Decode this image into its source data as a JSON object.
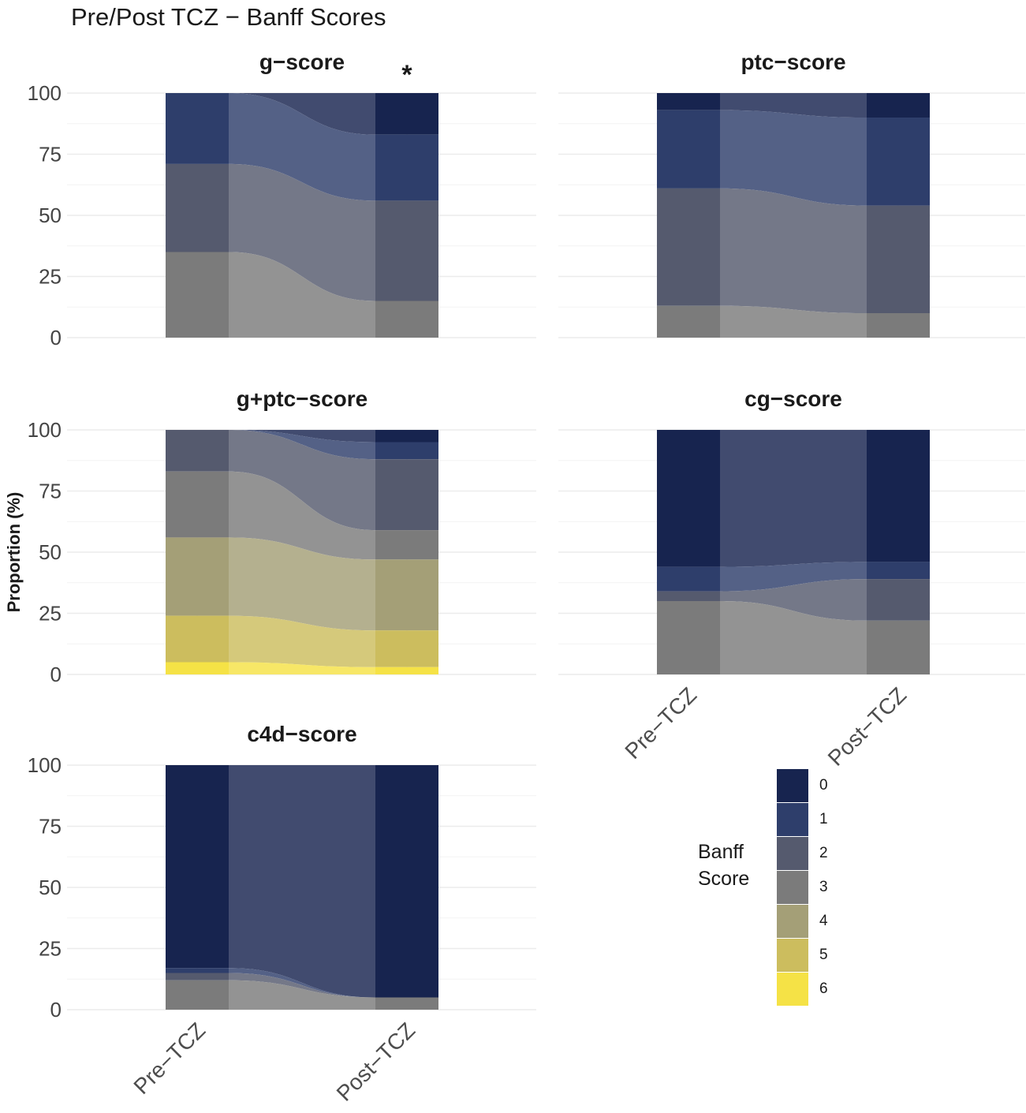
{
  "title": "Pre/Post TCZ − Banff Scores",
  "ylabel": "Proportion (%)",
  "legend": {
    "title_line1": "Banff",
    "title_line2": "Score",
    "items": [
      {
        "label": "0",
        "color": "#17244f"
      },
      {
        "label": "1",
        "color": "#2e3e6b"
      },
      {
        "label": "2",
        "color": "#555a6e"
      },
      {
        "label": "3",
        "color": "#7b7b7b"
      },
      {
        "label": "4",
        "color": "#a49f77"
      },
      {
        "label": "5",
        "color": "#ccbd5e"
      },
      {
        "label": "6",
        "color": "#f5e246"
      }
    ]
  },
  "chart_data": [
    {
      "type": "bar",
      "subtype": "stacked-alluvial",
      "title": "g−score",
      "annotation": "*",
      "categories": [
        "Pre−TCZ",
        "Post−TCZ"
      ],
      "ylim": [
        0,
        100
      ],
      "yticks": [
        "0",
        "25",
        "50",
        "75",
        "100"
      ],
      "series": [
        {
          "name": "0",
          "values": [
            0,
            17
          ]
        },
        {
          "name": "1",
          "values": [
            29,
            27
          ]
        },
        {
          "name": "2",
          "values": [
            36,
            41
          ]
        },
        {
          "name": "3",
          "values": [
            35,
            15
          ]
        }
      ]
    },
    {
      "type": "bar",
      "subtype": "stacked-alluvial",
      "title": "ptc−score",
      "categories": [
        "Pre−TCZ",
        "Post−TCZ"
      ],
      "ylim": [
        0,
        100
      ],
      "yticks": [
        "0",
        "25",
        "50",
        "75",
        "100"
      ],
      "series": [
        {
          "name": "0",
          "values": [
            7,
            10
          ]
        },
        {
          "name": "1",
          "values": [
            32,
            36
          ]
        },
        {
          "name": "2",
          "values": [
            48,
            44
          ]
        },
        {
          "name": "3",
          "values": [
            13,
            10
          ]
        }
      ]
    },
    {
      "type": "bar",
      "subtype": "stacked-alluvial",
      "title": "g+ptc−score",
      "categories": [
        "Pre−TCZ",
        "Post−TCZ"
      ],
      "ylim": [
        0,
        100
      ],
      "yticks": [
        "0",
        "25",
        "50",
        "75",
        "100"
      ],
      "series": [
        {
          "name": "0",
          "values": [
            0,
            5
          ]
        },
        {
          "name": "1",
          "values": [
            0,
            7
          ]
        },
        {
          "name": "2",
          "values": [
            17,
            29
          ]
        },
        {
          "name": "3",
          "values": [
            27,
            12
          ]
        },
        {
          "name": "4",
          "values": [
            32,
            29
          ]
        },
        {
          "name": "5",
          "values": [
            19,
            15
          ]
        },
        {
          "name": "6",
          "values": [
            5,
            3
          ]
        }
      ]
    },
    {
      "type": "bar",
      "subtype": "stacked-alluvial",
      "title": "cg−score",
      "categories": [
        "Pre−TCZ",
        "Post−TCZ"
      ],
      "ylim": [
        0,
        100
      ],
      "yticks": [
        "0",
        "25",
        "50",
        "75",
        "100"
      ],
      "series": [
        {
          "name": "0",
          "values": [
            56,
            54
          ]
        },
        {
          "name": "1",
          "values": [
            10,
            7
          ]
        },
        {
          "name": "2",
          "values": [
            4,
            17
          ]
        },
        {
          "name": "3",
          "values": [
            30,
            22
          ]
        }
      ]
    },
    {
      "type": "bar",
      "subtype": "stacked-alluvial",
      "title": "c4d−score",
      "categories": [
        "Pre−TCZ",
        "Post−TCZ"
      ],
      "ylim": [
        0,
        100
      ],
      "yticks": [
        "0",
        "25",
        "50",
        "75",
        "100"
      ],
      "series": [
        {
          "name": "0",
          "values": [
            83,
            95
          ]
        },
        {
          "name": "1",
          "values": [
            2,
            0
          ]
        },
        {
          "name": "2",
          "values": [
            3,
            0
          ]
        },
        {
          "name": "3",
          "values": [
            12,
            5
          ]
        }
      ]
    }
  ]
}
